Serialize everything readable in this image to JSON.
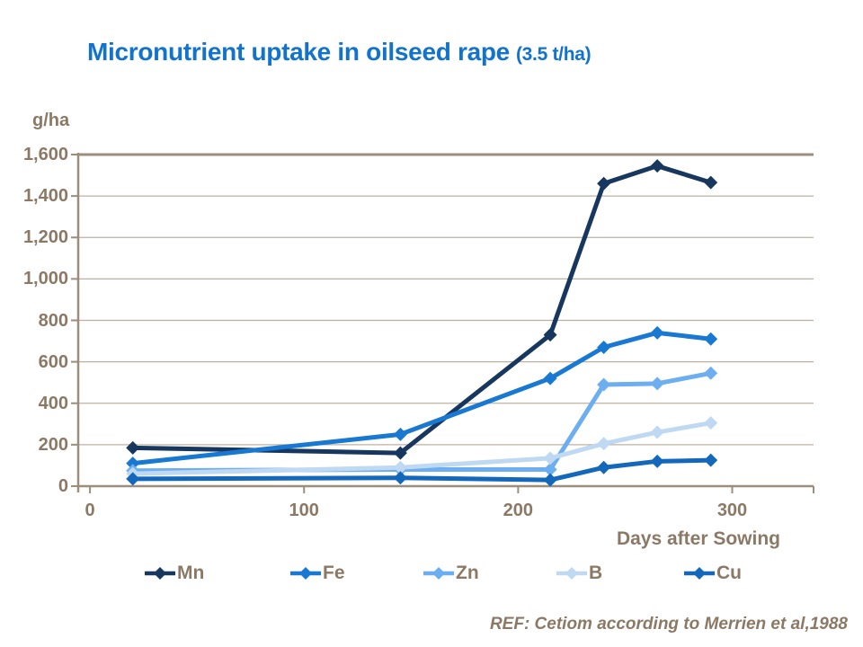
{
  "title": {
    "main": "Micronutrient uptake in oilseed rape",
    "suffix": "(3.5 t/ha)"
  },
  "ref_text": "REF: Cetiom according to Merrien et al,1988",
  "colors": {
    "title_blue": "#1173CE",
    "text_taupe": "#8B7965",
    "gridline": "#BDB0A0",
    "axis": "#9C8E7D",
    "background": "#FFFFFF"
  },
  "chart_data": {
    "type": "line",
    "title": "Micronutrient uptake in oilseed rape (3.5 t/ha)",
    "xlabel": "Days after Sowing",
    "ylabel": "g/ha",
    "x": [
      20,
      145,
      215,
      240,
      265,
      290
    ],
    "series": [
      {
        "name": "Mn",
        "color": "#17375E",
        "values": [
          185,
          160,
          730,
          1460,
          1545,
          1465
        ]
      },
      {
        "name": "Fe",
        "color": "#1878D2",
        "values": [
          110,
          250,
          520,
          670,
          740,
          710
        ]
      },
      {
        "name": "Zn",
        "color": "#6CAEF0",
        "values": [
          75,
          80,
          80,
          490,
          495,
          545
        ]
      },
      {
        "name": "B",
        "color": "#BFD9F2",
        "values": [
          60,
          90,
          135,
          205,
          260,
          305
        ]
      },
      {
        "name": "Cu",
        "color": "#1468BC",
        "values": [
          35,
          40,
          30,
          90,
          120,
          125
        ]
      }
    ],
    "xtick_values": [
      0,
      100,
      200,
      300
    ],
    "xtick_labels": [
      "0",
      "100",
      "200",
      "300"
    ],
    "ytick_values": [
      0,
      200,
      400,
      600,
      800,
      1000,
      1200,
      1400,
      1600
    ],
    "ytick_labels": [
      "0",
      "200",
      "400",
      "600",
      "800",
      "1,000",
      "1,200",
      "1,400",
      "1,600"
    ],
    "xlim": [
      0,
      338
    ],
    "ylim": [
      0,
      1600
    ],
    "grid": "horizontal",
    "legend_position": "bottom",
    "marker": "diamond"
  }
}
